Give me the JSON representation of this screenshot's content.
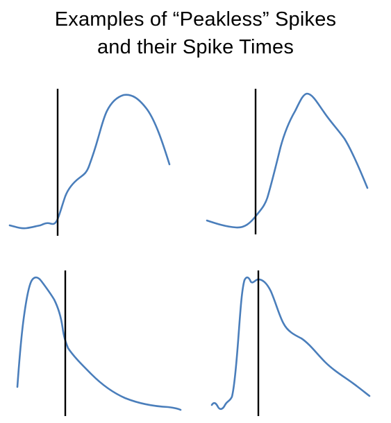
{
  "title": {
    "line1": "Examples of “Peakless” Spikes",
    "line2": "and their Spike Times"
  },
  "colors": {
    "trace": "#4A7EBB",
    "marker": "#000000",
    "background": "#FFFFFF"
  },
  "panels": [
    {
      "name": "top-left"
    },
    {
      "name": "top-right"
    },
    {
      "name": "bottom-left"
    },
    {
      "name": "bottom-right"
    }
  ]
}
